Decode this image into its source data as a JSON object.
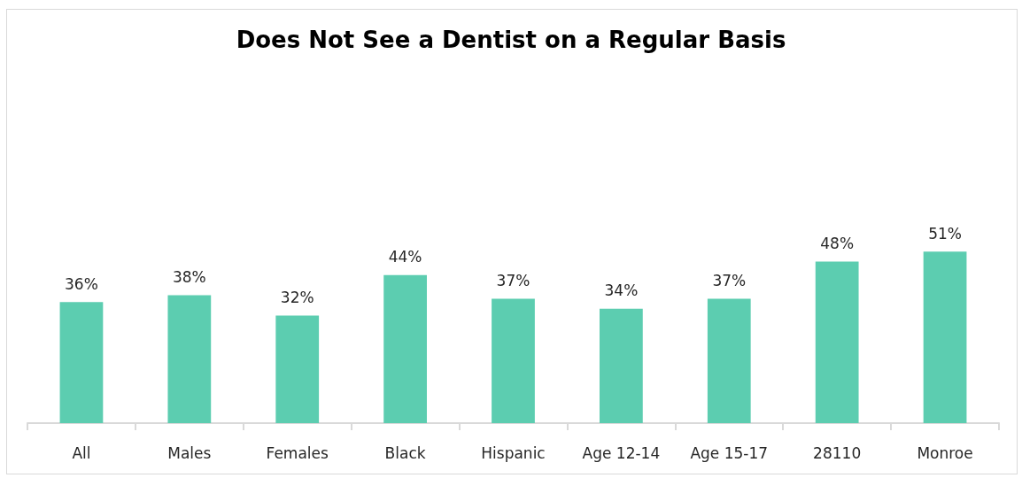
{
  "chart_data": {
    "type": "bar",
    "title": "Does Not See a Dentist on a Regular Basis",
    "categories": [
      "All",
      "Males",
      "Females",
      "Black",
      "Hispanic",
      "Age 12-14",
      "Age 15-17",
      "28110",
      "Monroe"
    ],
    "values": [
      36,
      38,
      32,
      44,
      37,
      34,
      37,
      48,
      51
    ],
    "value_labels": [
      "36%",
      "38%",
      "32%",
      "44%",
      "37%",
      "34%",
      "37%",
      "48%",
      "51%"
    ],
    "color": "#5ccdb0",
    "grid": false,
    "tick_labels": "x"
  }
}
